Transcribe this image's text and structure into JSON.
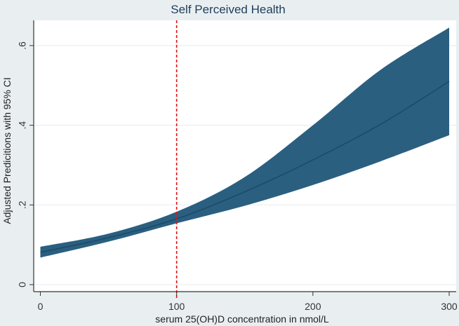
{
  "chart_data": {
    "type": "line",
    "title": "Self Perceived Health",
    "xlabel": "serum 25(OH)D concentration in nmol/L",
    "ylabel": "Adjusted Predicitions with 95% CI",
    "xlim": [
      0,
      300
    ],
    "ylim": [
      0,
      0.65
    ],
    "x_ticks": [
      0,
      100,
      200,
      300
    ],
    "x_tick_labels": [
      "0",
      "100",
      "200",
      "300"
    ],
    "y_ticks": [
      0,
      0.2,
      0.4,
      0.6
    ],
    "y_tick_labels": [
      "0",
      ".2",
      ".4",
      ".6"
    ],
    "grid": true,
    "series": [
      {
        "name": "Adjusted prediction",
        "x": [
          0,
          50,
          100,
          150,
          200,
          250,
          300
        ],
        "y": [
          0.081,
          0.118,
          0.165,
          0.233,
          0.313,
          0.403,
          0.51
        ],
        "ci_upper": [
          0.095,
          0.128,
          0.183,
          0.27,
          0.4,
          0.54,
          0.645
        ],
        "ci_lower": [
          0.068,
          0.108,
          0.154,
          0.198,
          0.25,
          0.31,
          0.375
        ],
        "color": "#2a5f80",
        "line_color": "#1d4966"
      }
    ],
    "reference_line": {
      "x": 100,
      "color": "#e01010",
      "style": "dashed"
    }
  }
}
